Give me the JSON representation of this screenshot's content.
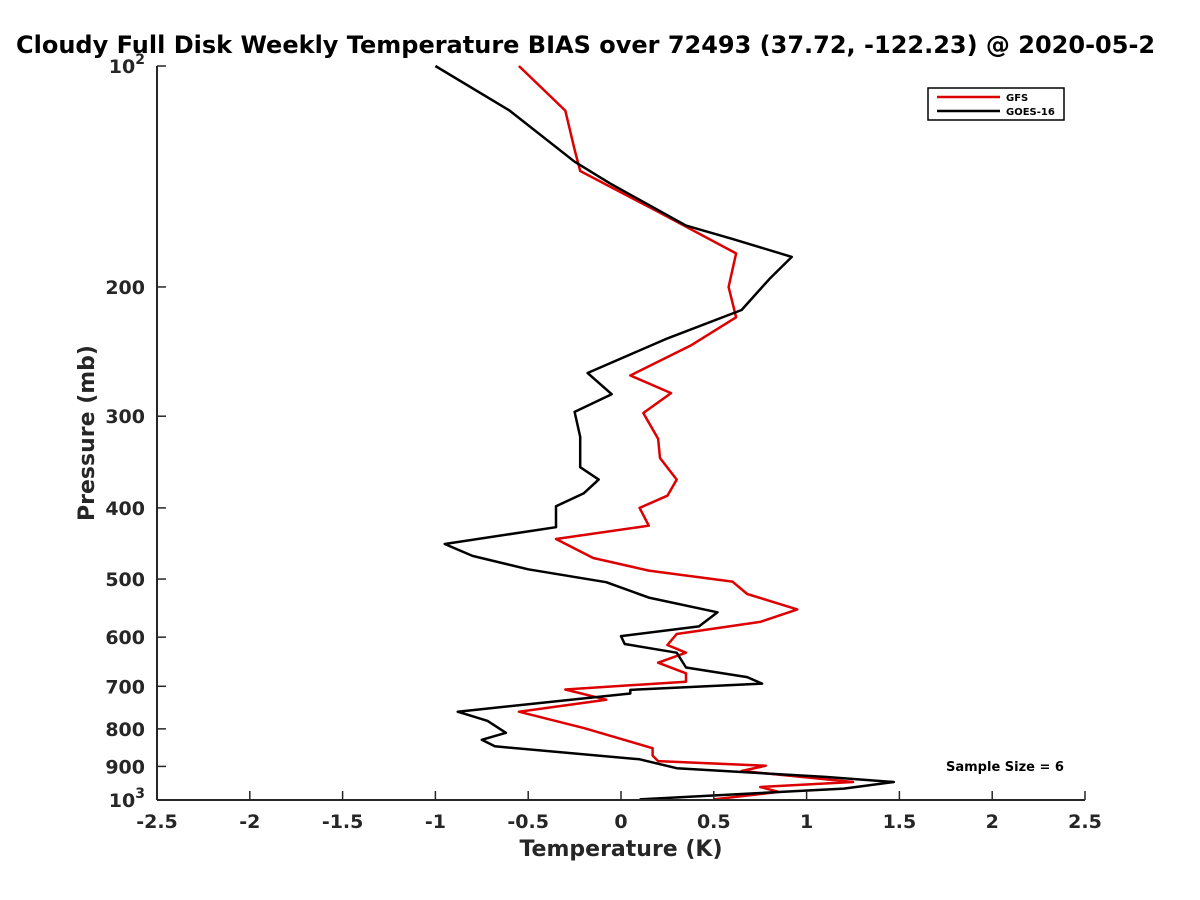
{
  "chart_data": {
    "type": "line",
    "title": "Cloudy Full Disk Weekly Temperature BIAS over 72493 (37.72, -122.23) @ 2020-05-2",
    "xlabel": "Temperature (K)",
    "ylabel": "Pressure (mb)",
    "xlim": [
      -2.5,
      2.5
    ],
    "ylim": [
      100,
      1000
    ],
    "y_scale": "log",
    "y_reversed": true,
    "grid": false,
    "legend_position": "top-right",
    "x_ticks": [
      {
        "value": -2.5,
        "label": "-2.5"
      },
      {
        "value": -2,
        "label": "-2"
      },
      {
        "value": -1.5,
        "label": "-1.5"
      },
      {
        "value": -1,
        "label": "-1"
      },
      {
        "value": -0.5,
        "label": "-0.5"
      },
      {
        "value": 0,
        "label": "0"
      },
      {
        "value": 0.5,
        "label": "0.5"
      },
      {
        "value": 1,
        "label": "1"
      },
      {
        "value": 1.5,
        "label": "1.5"
      },
      {
        "value": 2,
        "label": "2"
      },
      {
        "value": 2.5,
        "label": "2.5"
      }
    ],
    "y_ticks": [
      {
        "value": 100,
        "label": "",
        "base": "10",
        "exp": "2"
      },
      {
        "value": 200,
        "label": "200"
      },
      {
        "value": 300,
        "label": "300"
      },
      {
        "value": 400,
        "label": "400"
      },
      {
        "value": 500,
        "label": "500"
      },
      {
        "value": 600,
        "label": "600"
      },
      {
        "value": 700,
        "label": "700"
      },
      {
        "value": 800,
        "label": "800"
      },
      {
        "value": 900,
        "label": "900"
      },
      {
        "value": 1000,
        "label": "",
        "base": "10",
        "exp": "3"
      }
    ],
    "annotation": "Sample Size = 6",
    "series": [
      {
        "name": "GFS",
        "color": "#dd0000",
        "points": [
          [
            -0.55,
            100
          ],
          [
            -0.3,
            115
          ],
          [
            -0.25,
            130
          ],
          [
            -0.22,
            139
          ],
          [
            0.2,
            158
          ],
          [
            0.62,
            180
          ],
          [
            0.58,
            200
          ],
          [
            0.62,
            220
          ],
          [
            0.38,
            240
          ],
          [
            0.05,
            264
          ],
          [
            0.27,
            279
          ],
          [
            0.12,
            297
          ],
          [
            0.2,
            322
          ],
          [
            0.21,
            342
          ],
          [
            0.3,
            366
          ],
          [
            0.25,
            385
          ],
          [
            0.1,
            400
          ],
          [
            0.15,
            423
          ],
          [
            -0.35,
            441
          ],
          [
            -0.15,
            468
          ],
          [
            0.15,
            487
          ],
          [
            0.6,
            504
          ],
          [
            0.68,
            524
          ],
          [
            0.95,
            550
          ],
          [
            0.75,
            572
          ],
          [
            0.3,
            594
          ],
          [
            0.25,
            615
          ],
          [
            0.35,
            630
          ],
          [
            0.2,
            650
          ],
          [
            0.35,
            672
          ],
          [
            0.35,
            690
          ],
          [
            -0.3,
            707
          ],
          [
            -0.08,
            730
          ],
          [
            -0.55,
            758
          ],
          [
            -0.2,
            798
          ],
          [
            0.17,
            850
          ],
          [
            0.17,
            870
          ],
          [
            0.2,
            885
          ],
          [
            0.78,
            898
          ],
          [
            0.65,
            913
          ],
          [
            1.25,
            945
          ],
          [
            0.75,
            960
          ],
          [
            0.85,
            975
          ],
          [
            0.5,
            998
          ]
        ]
      },
      {
        "name": "GOES-16",
        "color": "#000000",
        "points": [
          [
            -1.0,
            100
          ],
          [
            -0.6,
            115
          ],
          [
            -0.25,
            135
          ],
          [
            -0.05,
            145
          ],
          [
            0.35,
            165
          ],
          [
            0.6,
            172
          ],
          [
            0.92,
            182
          ],
          [
            0.8,
            195
          ],
          [
            0.65,
            215
          ],
          [
            0.25,
            235
          ],
          [
            -0.18,
            262
          ],
          [
            -0.05,
            280
          ],
          [
            -0.25,
            296
          ],
          [
            -0.22,
            320
          ],
          [
            -0.22,
            352
          ],
          [
            -0.12,
            366
          ],
          [
            -0.2,
            382
          ],
          [
            -0.35,
            398
          ],
          [
            -0.35,
            425
          ],
          [
            -0.95,
            448
          ],
          [
            -0.8,
            465
          ],
          [
            -0.5,
            485
          ],
          [
            -0.08,
            505
          ],
          [
            0.15,
            530
          ],
          [
            0.52,
            555
          ],
          [
            0.42,
            580
          ],
          [
            0.0,
            598
          ],
          [
            0.02,
            613
          ],
          [
            0.3,
            630
          ],
          [
            0.35,
            660
          ],
          [
            0.68,
            680
          ],
          [
            0.76,
            694
          ],
          [
            0.05,
            708
          ],
          [
            0.05,
            716
          ],
          [
            -0.88,
            758
          ],
          [
            -0.72,
            780
          ],
          [
            -0.62,
            810
          ],
          [
            -0.75,
            828
          ],
          [
            -0.68,
            845
          ],
          [
            0.1,
            880
          ],
          [
            0.3,
            905
          ],
          [
            1.1,
            930
          ],
          [
            1.47,
            945
          ],
          [
            1.2,
            965
          ],
          [
            0.1,
            998
          ]
        ]
      }
    ]
  }
}
